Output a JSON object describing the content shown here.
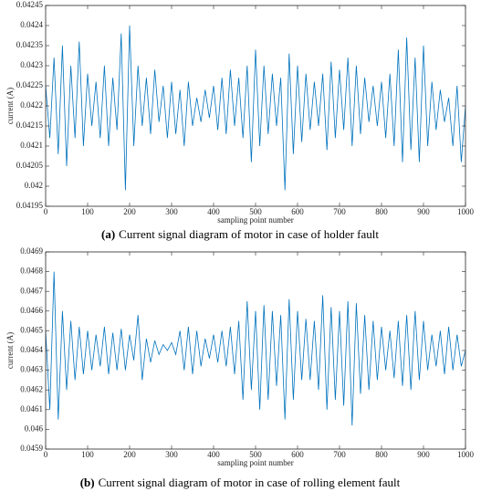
{
  "chart_data": [
    {
      "type": "line",
      "xlabel": "sampling point number",
      "ylabel": "current (A)",
      "caption_label": "(a)",
      "caption": "Current signal diagram of motor in case of holder fault",
      "xlim": [
        0,
        1000
      ],
      "xticks": [
        0,
        100,
        200,
        300,
        400,
        500,
        600,
        700,
        800,
        900,
        1000
      ],
      "ylim": [
        0.04195,
        0.04245
      ],
      "yticks": [
        0.04195,
        0.042,
        0.04205,
        0.0421,
        0.04215,
        0.0422,
        0.04225,
        0.0423,
        0.04235,
        0.0424,
        0.04245
      ],
      "x": [
        0,
        10,
        20,
        30,
        40,
        50,
        60,
        70,
        80,
        90,
        100,
        110,
        120,
        130,
        140,
        150,
        160,
        170,
        180,
        190,
        200,
        210,
        220,
        230,
        240,
        250,
        260,
        270,
        280,
        290,
        300,
        310,
        320,
        330,
        340,
        350,
        360,
        370,
        380,
        390,
        400,
        410,
        420,
        430,
        440,
        450,
        460,
        470,
        480,
        490,
        500,
        510,
        520,
        530,
        540,
        550,
        560,
        570,
        580,
        590,
        600,
        610,
        620,
        630,
        640,
        650,
        660,
        670,
        680,
        690,
        700,
        710,
        720,
        730,
        740,
        750,
        760,
        770,
        780,
        790,
        800,
        810,
        820,
        830,
        840,
        850,
        860,
        870,
        880,
        890,
        900,
        910,
        920,
        930,
        940,
        950,
        960,
        970,
        980,
        990,
        1000
      ],
      "series": [
        {
          "color": "#0072bd",
          "values": [
            0.04225,
            0.04212,
            0.04232,
            0.04208,
            0.04235,
            0.04205,
            0.0423,
            0.04212,
            0.04236,
            0.0421,
            0.04228,
            0.04215,
            0.04226,
            0.04212,
            0.0423,
            0.0421,
            0.04227,
            0.04214,
            0.04238,
            0.04199,
            0.0424,
            0.0421,
            0.0423,
            0.04215,
            0.04227,
            0.04213,
            0.04229,
            0.04216,
            0.04225,
            0.04212,
            0.04226,
            0.04213,
            0.04224,
            0.0421,
            0.04226,
            0.04215,
            0.04222,
            0.04216,
            0.04224,
            0.04217,
            0.04225,
            0.04214,
            0.04227,
            0.04213,
            0.04229,
            0.04215,
            0.04227,
            0.04212,
            0.0423,
            0.04206,
            0.04234,
            0.0421,
            0.0423,
            0.04213,
            0.04228,
            0.04215,
            0.04227,
            0.04199,
            0.04233,
            0.04208,
            0.0423,
            0.04211,
            0.04228,
            0.04214,
            0.04226,
            0.04215,
            0.04228,
            0.04209,
            0.04231,
            0.04212,
            0.04229,
            0.04214,
            0.04232,
            0.0421,
            0.0423,
            0.04213,
            0.04227,
            0.04216,
            0.04225,
            0.04215,
            0.04226,
            0.04212,
            0.04228,
            0.0421,
            0.04234,
            0.04206,
            0.04237,
            0.04209,
            0.04232,
            0.04206,
            0.04235,
            0.0421,
            0.04226,
            0.04214,
            0.04224,
            0.04216,
            0.04222,
            0.0421,
            0.04225,
            0.04206,
            0.0422
          ]
        }
      ]
    },
    {
      "type": "line",
      "xlabel": "sampling point number",
      "ylabel": "current (A)",
      "caption_label": "(b)",
      "caption": "Current signal diagram of motor in case of rolling element fault",
      "xlim": [
        0,
        1000
      ],
      "xticks": [
        0,
        100,
        200,
        300,
        400,
        500,
        600,
        700,
        800,
        900,
        1000
      ],
      "ylim": [
        0.0459,
        0.0469
      ],
      "yticks": [
        0.0459,
        0.046,
        0.0461,
        0.0462,
        0.0463,
        0.0464,
        0.0465,
        0.0466,
        0.0467,
        0.0468,
        0.0469
      ],
      "x": [
        0,
        10,
        20,
        30,
        40,
        50,
        60,
        70,
        80,
        90,
        100,
        110,
        120,
        130,
        140,
        150,
        160,
        170,
        180,
        190,
        200,
        210,
        220,
        230,
        240,
        250,
        260,
        270,
        280,
        290,
        300,
        310,
        320,
        330,
        340,
        350,
        360,
        370,
        380,
        390,
        400,
        410,
        420,
        430,
        440,
        450,
        460,
        470,
        480,
        490,
        500,
        510,
        520,
        530,
        540,
        550,
        560,
        570,
        580,
        590,
        600,
        610,
        620,
        630,
        640,
        650,
        660,
        670,
        680,
        690,
        700,
        710,
        720,
        730,
        740,
        750,
        760,
        770,
        780,
        790,
        800,
        810,
        820,
        830,
        840,
        850,
        860,
        870,
        880,
        890,
        900,
        910,
        920,
        930,
        940,
        950,
        960,
        970,
        980,
        990,
        1000
      ],
      "series": [
        {
          "color": "#0072bd",
          "values": [
            0.0465,
            0.0461,
            0.0468,
            0.04605,
            0.0466,
            0.0462,
            0.04655,
            0.04625,
            0.04652,
            0.04628,
            0.0465,
            0.0463,
            0.04648,
            0.04632,
            0.04652,
            0.04628,
            0.04649,
            0.0463,
            0.04651,
            0.0463,
            0.04648,
            0.04635,
            0.04658,
            0.04625,
            0.04646,
            0.04634,
            0.04645,
            0.04638,
            0.04643,
            0.0464,
            0.04644,
            0.04638,
            0.0465,
            0.0463,
            0.04652,
            0.04628,
            0.0465,
            0.04632,
            0.04646,
            0.04636,
            0.04648,
            0.04634,
            0.0465,
            0.04632,
            0.04652,
            0.04628,
            0.04655,
            0.04615,
            0.04665,
            0.0462,
            0.0466,
            0.0461,
            0.04663,
            0.04615,
            0.0466,
            0.04622,
            0.04658,
            0.04605,
            0.04666,
            0.04615,
            0.0466,
            0.04625,
            0.04656,
            0.04625,
            0.04655,
            0.0462,
            0.04668,
            0.0461,
            0.04662,
            0.04615,
            0.0466,
            0.04612,
            0.04665,
            0.04602,
            0.04664,
            0.04618,
            0.04658,
            0.0462,
            0.04655,
            0.04625,
            0.04652,
            0.0463,
            0.0465,
            0.04626,
            0.04655,
            0.04622,
            0.04658,
            0.0462,
            0.0466,
            0.04625,
            0.04655,
            0.0463,
            0.04648,
            0.04632,
            0.0465,
            0.04628,
            0.04652,
            0.0463,
            0.04648,
            0.04632,
            0.0464
          ]
        }
      ]
    }
  ]
}
